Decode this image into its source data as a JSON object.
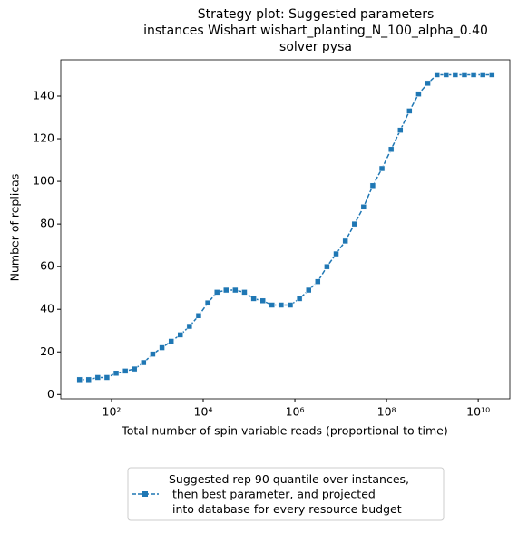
{
  "chart_data": {
    "type": "line",
    "title": "Strategy plot: Suggested parameters\ninstances Wishart wishart_planting_N_100_alpha_0.40\nsolver pysa",
    "x_label": "Total number of spin variable reads (proportional to time)",
    "y_label": "Number of replicas",
    "x_log": true,
    "xlim": [
      7.8,
      49000000000.0
    ],
    "ylim": [
      -2,
      157
    ],
    "xticks": [
      {
        "value": 100,
        "label": "10²"
      },
      {
        "value": 10000,
        "label": "10⁴"
      },
      {
        "value": 1000000,
        "label": "10⁶"
      },
      {
        "value": 100000000,
        "label": "10⁸"
      },
      {
        "value": 10000000000,
        "label": "10¹⁰"
      }
    ],
    "yticks": [
      0,
      20,
      40,
      60,
      80,
      100,
      120,
      140
    ],
    "legend": "bottom-outside",
    "x": [
      20.0,
      31.6,
      50.1,
      79.4,
      126.0,
      200.0,
      316.0,
      501.0,
      794.0,
      1260.0,
      2000.0,
      3160.0,
      5010.0,
      7940.0,
      12600.0,
      20000.0,
      31600.0,
      50100.0,
      79400.0,
      126000.0,
      200000.0,
      316000.0,
      501000.0,
      794000.0,
      1260000.0,
      2000000.0,
      3160000.0,
      5010000.0,
      7940000.0,
      12600000.0,
      20000000.0,
      31600000.0,
      50100000.0,
      79400000.0,
      126000000.0,
      200000000.0,
      316000000.0,
      501000000.0,
      794000000.0,
      1260000000.0,
      2000000000.0,
      3160000000.0,
      5010000000.0,
      7940000000.0,
      12600000000.0,
      20000000000.0
    ],
    "series": [
      {
        "name": "Suggested rep 90 quantile over instances,\n then best parameter, and projected\n into database for every resource budget",
        "color": "#1f77b4",
        "values": [
          7,
          7,
          8,
          8,
          10,
          11,
          12,
          15,
          19,
          22,
          25,
          28,
          32,
          37,
          43,
          48,
          49,
          49,
          48,
          45,
          44,
          42,
          42,
          42,
          45,
          49,
          53,
          60,
          66,
          72,
          80,
          88,
          98,
          106,
          115,
          124,
          133,
          141,
          146,
          150,
          150,
          150,
          150,
          150,
          150,
          150
        ]
      }
    ]
  }
}
